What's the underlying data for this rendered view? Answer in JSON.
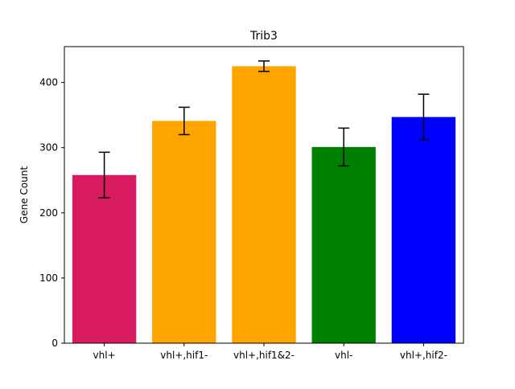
{
  "chart_data": {
    "type": "bar",
    "title": "Trib3",
    "xlabel": "",
    "ylabel": "Gene Count",
    "categories": [
      "vhl+",
      "vhl+,hif1-",
      "vhl+,hif1&2-",
      "vhl-",
      "vhl+,hif2-"
    ],
    "values": [
      258,
      341,
      425,
      301,
      347
    ],
    "errors": [
      35,
      21,
      8,
      29,
      35
    ],
    "colors": [
      "#d81b60",
      "#ffa500",
      "#ffa500",
      "#008000",
      "#0000ff"
    ],
    "ylim": [
      0,
      455
    ],
    "yticks": [
      0,
      100,
      200,
      300,
      400
    ],
    "grid": false,
    "legend": "none"
  }
}
